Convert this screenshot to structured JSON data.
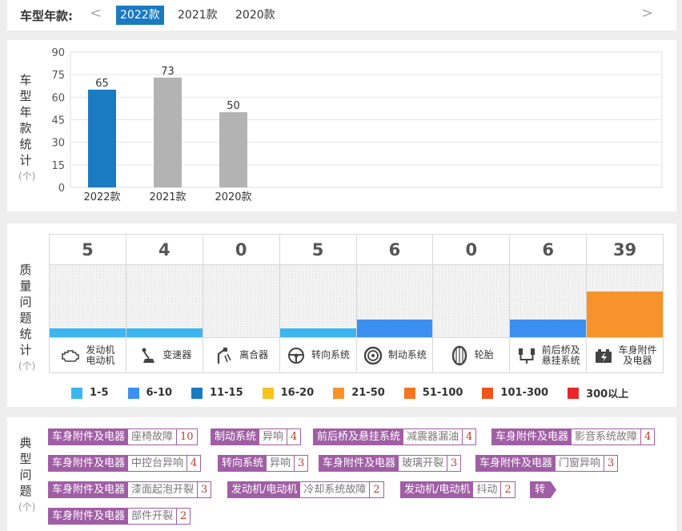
{
  "year_selector": {
    "label": "车型年款:",
    "prev": "<",
    "next": ">",
    "tabs": [
      {
        "label": "2022款",
        "active": true
      },
      {
        "label": "2021款",
        "active": false
      },
      {
        "label": "2020款",
        "active": false
      }
    ]
  },
  "model_year_stats": {
    "side_label": [
      "车",
      "型",
      "年",
      "款",
      "统",
      "计"
    ],
    "unit": "(个)",
    "chart_data": {
      "type": "bar",
      "categories": [
        "2022款",
        "2021款",
        "2020款"
      ],
      "values": [
        65,
        73,
        50
      ],
      "bar_colors": [
        "#1a7ac2",
        "#b3b3b3",
        "#b3b3b3"
      ],
      "yticks": [
        0,
        15,
        30,
        45,
        60,
        75,
        90
      ],
      "ylim": [
        0,
        90
      ],
      "grid": true,
      "data_labels": true
    }
  },
  "quality_issues": {
    "side_label": [
      "质",
      "量",
      "问",
      "题",
      "统",
      "计"
    ],
    "unit": "(个)",
    "columns": [
      {
        "count": "5",
        "value": 5,
        "label": [
          "发动机",
          "电动机"
        ],
        "icon": "engine-icon",
        "bar_color": "#3db5f0"
      },
      {
        "count": "4",
        "value": 4,
        "label": [
          "变速器"
        ],
        "icon": "gear-shift-icon",
        "bar_color": "#3db5f0"
      },
      {
        "count": "0",
        "value": 0,
        "label": [
          "离合器"
        ],
        "icon": "clutch-pedal-icon",
        "bar_color": "#3db5f0"
      },
      {
        "count": "5",
        "value": 5,
        "label": [
          "转向系统"
        ],
        "icon": "steering-wheel-icon",
        "bar_color": "#3db5f0"
      },
      {
        "count": "6",
        "value": 6,
        "label": [
          "制动系统"
        ],
        "icon": "brake-disc-icon",
        "bar_color": "#3a8ff0"
      },
      {
        "count": "0",
        "value": 0,
        "label": [
          "轮胎"
        ],
        "icon": "tire-icon",
        "bar_color": "#3db5f0"
      },
      {
        "count": "6",
        "value": 6,
        "label": [
          "前后桥及",
          "悬挂系统"
        ],
        "icon": "suspension-icon",
        "bar_color": "#3a8ff0"
      },
      {
        "count": "39",
        "value": 39,
        "label": [
          "车身附件",
          "及电器"
        ],
        "icon": "car-battery-icon",
        "bar_color": "#f7932a"
      }
    ],
    "legend": [
      {
        "label": "1-5",
        "color": "#3db5f0"
      },
      {
        "label": "6-10",
        "color": "#3a8ff0"
      },
      {
        "label": "11-15",
        "color": "#1a7ac2"
      },
      {
        "label": "16-20",
        "color": "#f8c21f"
      },
      {
        "label": "21-50",
        "color": "#f7932a"
      },
      {
        "label": "51-100",
        "color": "#f57622"
      },
      {
        "label": "101-300",
        "color": "#f05418"
      },
      {
        "label": "300以上",
        "color": "#e8262b"
      }
    ]
  },
  "typical_problems": {
    "side_label": [
      "典",
      "型",
      "问",
      "题"
    ],
    "unit": "(个)",
    "tags": [
      {
        "category": "车身附件及电器",
        "problem": "座椅故障",
        "count": "10"
      },
      {
        "category": "制动系统",
        "problem": "异响",
        "count": "4"
      },
      {
        "category": "前后桥及悬挂系统",
        "problem": "减震器漏油",
        "count": "4"
      },
      {
        "category": "车身附件及电器",
        "problem": "影音系统故障",
        "count": "4"
      },
      {
        "category": "车身附件及电器",
        "problem": "中控台异响",
        "count": "4"
      },
      {
        "category": "转向系统",
        "problem": "异响",
        "count": "3"
      },
      {
        "category": "车身附件及电器",
        "problem": "玻璃开裂",
        "count": "3"
      },
      {
        "category": "车身附件及电器",
        "problem": "门窗异响",
        "count": "3"
      },
      {
        "category": "车身附件及电器",
        "problem": "漆面起泡开裂",
        "count": "3"
      },
      {
        "category": "发动机/电动机",
        "problem": "冷却系统故障",
        "count": "2"
      },
      {
        "category": "发动机/电动机",
        "problem": "抖动",
        "count": "2"
      },
      {
        "category": "车身附件及电器",
        "problem": "部件开裂",
        "count": "2"
      }
    ],
    "more_label": "转"
  }
}
